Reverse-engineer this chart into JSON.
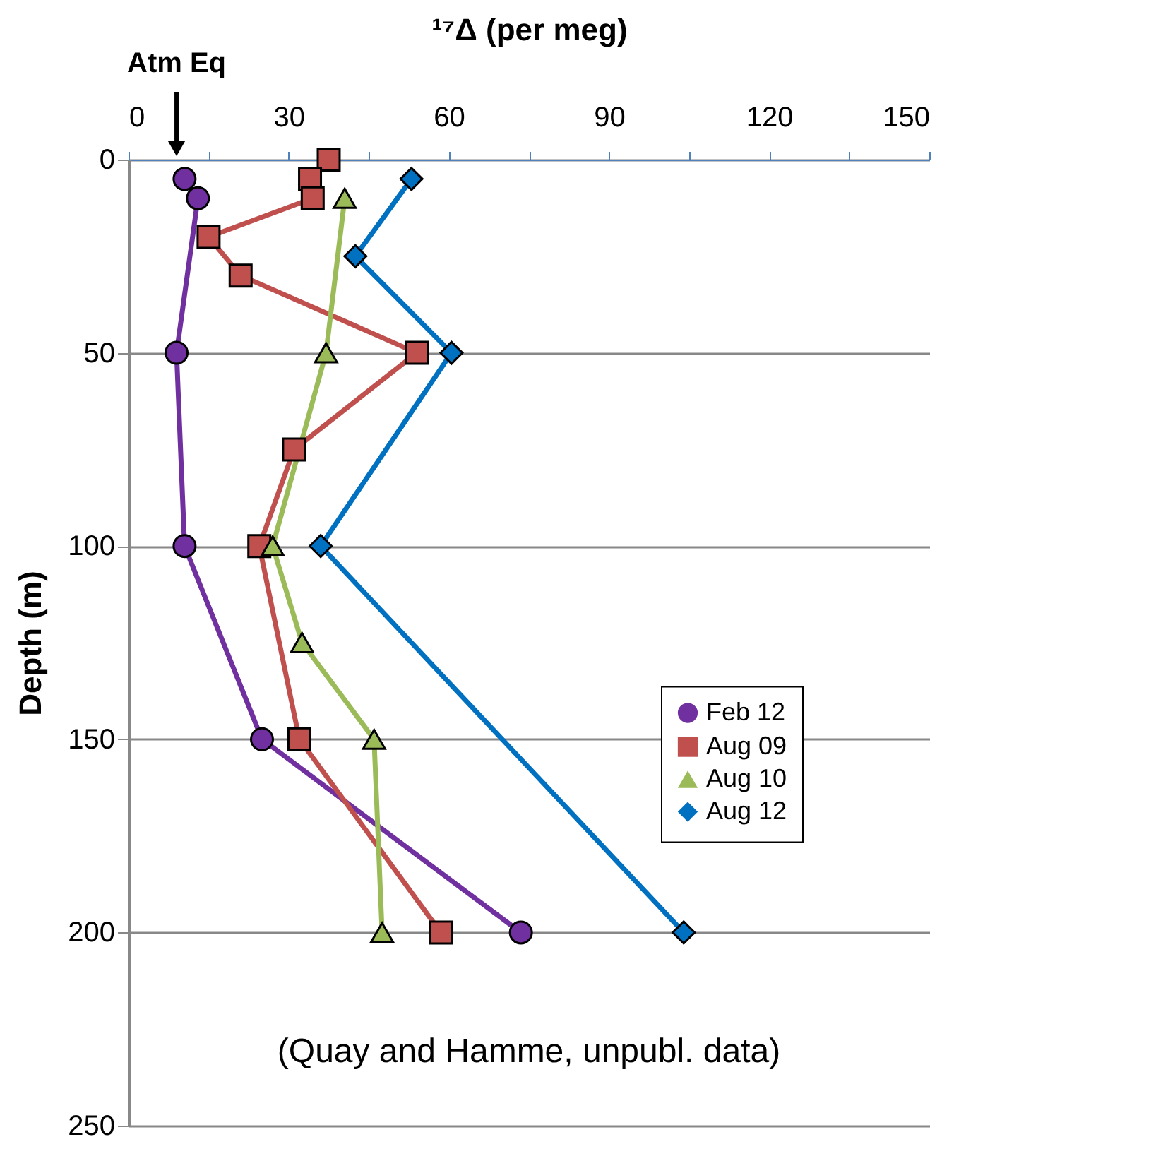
{
  "chart_data": {
    "type": "line",
    "xlabel": "¹⁷Δ (per meg)",
    "ylabel": "Depth (m)",
    "xlim": [
      0,
      150
    ],
    "xticks": [
      0,
      {
        "value": 15,
        "label": null
      },
      30,
      {
        "value": 45,
        "label": null
      },
      60,
      {
        "value": 75,
        "label": null
      },
      90,
      {
        "value": 105,
        "label": null
      },
      120,
      {
        "value": 135,
        "label": null
      },
      150
    ],
    "ylim": [
      250,
      0
    ],
    "yticks": [
      0,
      50,
      100,
      150,
      200,
      250
    ],
    "grid": "y",
    "legend": "bottom right",
    "line_style": "solid",
    "annotations": [
      "Atm Eq",
      "(Quay and Hamme, unpubl. data)"
    ],
    "series": [
      {
        "name": "Feb 12",
        "color": "#7030a0",
        "marker": "circle",
        "x": [
          10.5,
          13,
          9,
          10.5,
          25,
          73.5
        ],
        "values": [
          5,
          10,
          50,
          100,
          150,
          200
        ]
      },
      {
        "name": "Aug 09",
        "color": "#c0504d",
        "marker": "square",
        "x": [
          37.5,
          34,
          34.5,
          15,
          21,
          54,
          31,
          24.5,
          32,
          58.5
        ],
        "values": [
          0,
          5,
          10,
          20,
          30,
          50,
          75,
          100,
          150,
          200
        ]
      },
      {
        "name": "Aug 10",
        "color": "#9bbb59",
        "marker": "triangle",
        "x": [
          40.5,
          37,
          27,
          32.5,
          46,
          47.5
        ],
        "values": [
          10,
          50,
          100,
          125,
          150,
          200
        ]
      },
      {
        "name": "Aug 12",
        "color": "#0070c0",
        "marker": "diamond",
        "x": [
          53,
          42.5,
          60.5,
          36,
          104
        ],
        "values": [
          5,
          25,
          50,
          100,
          200
        ]
      }
    ]
  }
}
